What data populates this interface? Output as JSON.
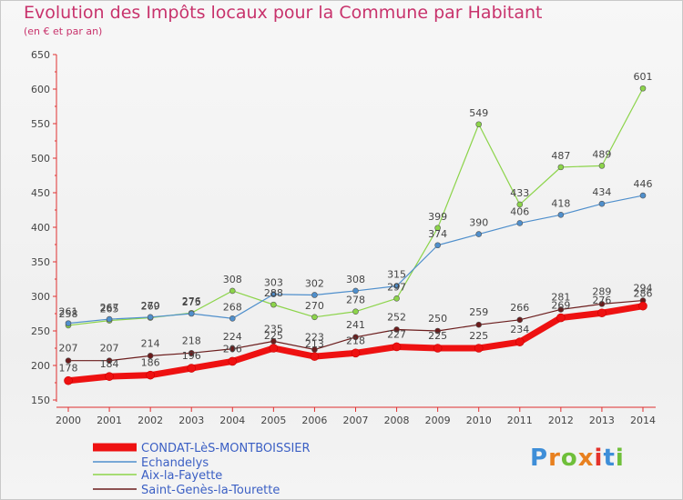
{
  "header": {
    "title": "Evolution des Impôts locaux pour la Commune par Habitant",
    "subtitle": "(en € et par an)"
  },
  "logo": {
    "text": "Proxiti",
    "letter_colors": [
      "#3e8ed8",
      "#e8801f",
      "#6fbf3a",
      "#e8801f",
      "#e4322b",
      "#3e8ed8",
      "#6fbf3a"
    ]
  },
  "chart_data": {
    "type": "line",
    "title": "Evolution des Impôts locaux pour la Commune par Habitant",
    "subtitle": "(en € et par an)",
    "xlabel": "",
    "ylabel": "",
    "x": [
      "2000",
      "2001",
      "2002",
      "2003",
      "2004",
      "2005",
      "2006",
      "2007",
      "2008",
      "2009",
      "2010",
      "2011",
      "2012",
      "2013",
      "2014"
    ],
    "ylim": [
      150,
      650
    ],
    "yticks": [
      150,
      200,
      250,
      300,
      350,
      400,
      450,
      500,
      550,
      600,
      650
    ],
    "grid": false,
    "legend_position": "bottom-left",
    "series": [
      {
        "name": "CONDAT-LèS-MONTBOISSIER",
        "color": "#ee1111",
        "labels_visible": true,
        "values": [
          178,
          184,
          186,
          196,
          206,
          225,
          213,
          218,
          227,
          225,
          225,
          234,
          269,
          276,
          286
        ]
      },
      {
        "name": "Echandelys",
        "color": "#4f8fcc",
        "labels_visible": true,
        "values": [
          261,
          267,
          270,
          275,
          268,
          303,
          302,
          308,
          315,
          374,
          390,
          406,
          418,
          434,
          446
        ]
      },
      {
        "name": "Aix-la-Fayette",
        "color": "#8cd44a",
        "labels_visible": true,
        "values": [
          258,
          265,
          269,
          276,
          308,
          288,
          270,
          278,
          297,
          399,
          549,
          433,
          487,
          489,
          601
        ]
      },
      {
        "name": "Saint-Genès-la-Tourette",
        "color": "#6b1c1c",
        "labels_visible": true,
        "values": [
          207,
          207,
          214,
          218,
          224,
          235,
          223,
          241,
          252,
          250,
          259,
          266,
          281,
          289,
          294
        ]
      }
    ]
  }
}
